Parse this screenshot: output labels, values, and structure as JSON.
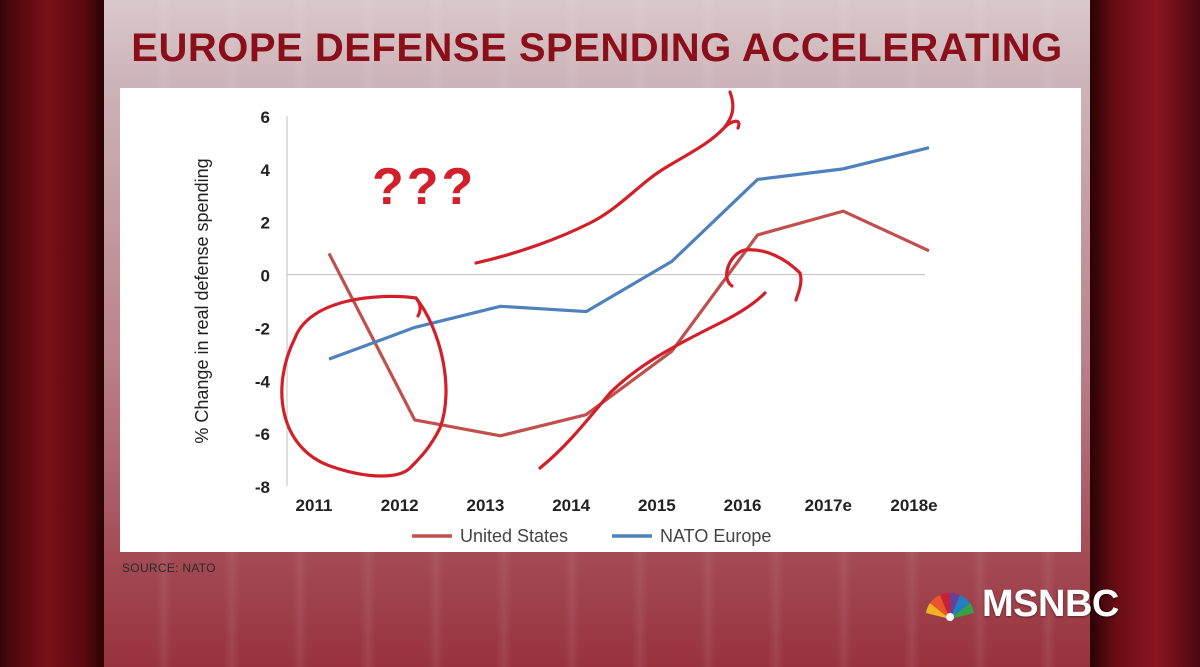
{
  "headline": "EUROPE DEFENSE SPENDING ACCELERATING",
  "source": "SOURCE: NATO",
  "network_logo": "MSNBC",
  "annotation": "???",
  "colors": {
    "us_line": "#c0504d",
    "europe_line": "#4f81bd",
    "marker_ink": "#d2202a",
    "headline": "#8a0f1a"
  },
  "chart_data": {
    "type": "line",
    "title": "",
    "xlabel": "",
    "ylabel": "% Change in real defense spending",
    "categories": [
      "2011",
      "2012",
      "2013",
      "2014",
      "2015",
      "2016",
      "2017e",
      "2018e"
    ],
    "ylim": [
      -8,
      6
    ],
    "yticks": [
      "6",
      "4",
      "2",
      "0",
      "-2",
      "-4",
      "-6",
      "-8"
    ],
    "grid": false,
    "legend": "bottom",
    "series": [
      {
        "name": "United States",
        "color": "#c0504d",
        "values": [
          0.8,
          -5.5,
          -6.1,
          -5.3,
          -2.9,
          1.5,
          2.4,
          0.9
        ]
      },
      {
        "name": "NATO Europe",
        "color": "#4f81bd",
        "values": [
          -3.2,
          -2.0,
          -1.2,
          -1.4,
          0.5,
          3.6,
          4.0,
          4.8
        ]
      }
    ]
  }
}
